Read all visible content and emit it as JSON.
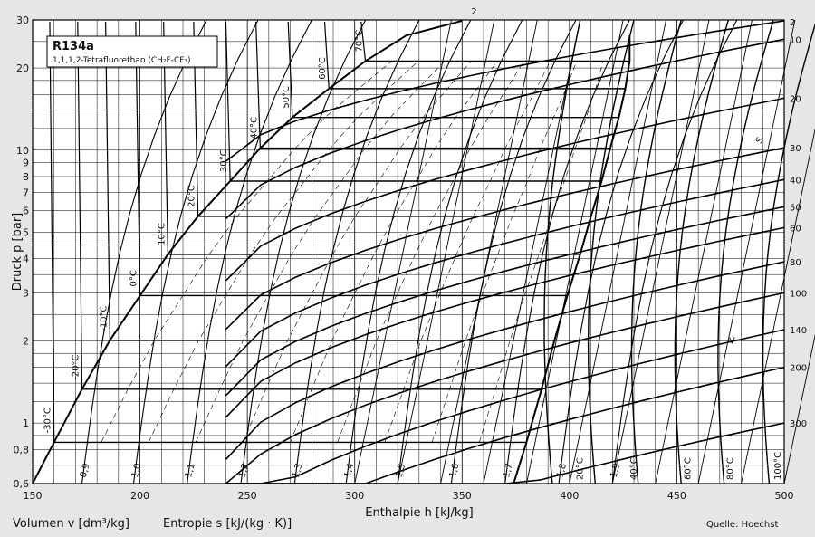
{
  "chart_data": {
    "type": "line",
    "title": "R134a",
    "subtitle": "1,1,1,2-Tetrafluorethan (CH₂F-CF₃)",
    "xlabel": "Enthalpie h [kJ/kg]",
    "ylabel": "Druck p [bar]",
    "footer_volume": "Volumen v [dm³/kg]",
    "footer_entropy": "Entropie s [kJ/(kg · K)]",
    "source": "Quelle: Hoechst",
    "x_scale": "linear",
    "y_scale": "log",
    "xlim": [
      150,
      500
    ],
    "ylim": [
      0.6,
      30
    ],
    "grid": true,
    "x_ticks": [
      "150",
      "200",
      "250",
      "300",
      "350",
      "400",
      "450",
      "500"
    ],
    "y_ticks": [
      {
        "v": 0.6,
        "l": "0,6"
      },
      {
        "v": 0.8,
        "l": "0,8"
      },
      {
        "v": 1,
        "l": "1"
      },
      {
        "v": 2,
        "l": "2"
      },
      {
        "v": 3,
        "l": "3"
      },
      {
        "v": 4,
        "l": "4"
      },
      {
        "v": 5,
        "l": "5"
      },
      {
        "v": 6,
        "l": "6"
      },
      {
        "v": 7,
        "l": "7"
      },
      {
        "v": 8,
        "l": "8"
      },
      {
        "v": 9,
        "l": "9"
      },
      {
        "v": 10,
        "l": "10"
      },
      {
        "v": 20,
        "l": "20"
      },
      {
        "v": 30,
        "l": "30"
      }
    ],
    "saturation": [
      {
        "t": "-30°C",
        "p": 0.85,
        "hl": 160,
        "hv": 380
      },
      {
        "t": "-20°C",
        "p": 1.33,
        "hl": 173,
        "hv": 387
      },
      {
        "t": "-10°C",
        "p": 2.01,
        "hl": 186,
        "hv": 393
      },
      {
        "t": "0°C",
        "p": 2.93,
        "hl": 200,
        "hv": 399
      },
      {
        "t": "10°C",
        "p": 4.15,
        "hl": 213,
        "hv": 405
      },
      {
        "t": "20°C",
        "p": 5.72,
        "hl": 227,
        "hv": 410
      },
      {
        "t": "30°C",
        "p": 7.7,
        "hl": 242,
        "hv": 415
      },
      {
        "t": "40°C",
        "p": 10.17,
        "hl": 256,
        "hv": 419
      },
      {
        "t": "50°C",
        "p": 13.18,
        "hl": 271,
        "hv": 423
      },
      {
        "t": "60°C",
        "p": 16.8,
        "hl": 288,
        "hv": 426
      },
      {
        "t": "70°C",
        "p": 21.2,
        "hl": 305,
        "hv": 428
      },
      {
        "t": "",
        "p": 26.3,
        "hl": 324,
        "hv": 428
      }
    ],
    "isotherm_labels": [
      "20°C",
      "40°C",
      "60°C",
      "80°C",
      "100°C"
    ],
    "isotherm_label_h": [
      405,
      430,
      455,
      475,
      497
    ],
    "isochore_labels": [
      "2",
      "10",
      "20",
      "30",
      "40",
      "50",
      "60",
      "80",
      "100",
      "140",
      "200",
      "300"
    ],
    "isochore_label_p": [
      29.5,
      25.5,
      15.5,
      10.2,
      7.8,
      6.2,
      5.2,
      3.9,
      3.0,
      2.2,
      1.6,
      1.0
    ],
    "entropy_labels": [
      "0,9",
      "1,0",
      "1,1",
      "1,2",
      "1,3",
      "1,4",
      "1,5",
      "1,6",
      "1,7",
      "1,8",
      "1,9"
    ],
    "entropy_label_h": [
      173,
      197,
      222,
      247,
      272,
      296,
      320,
      345,
      370,
      395,
      420
    ],
    "v_label": "V",
    "s_label": "S"
  }
}
